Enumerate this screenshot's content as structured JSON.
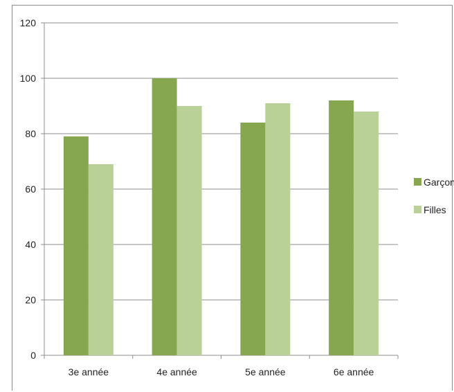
{
  "chart_data": {
    "type": "bar",
    "title": "",
    "xlabel": "",
    "ylabel": "",
    "categories": [
      "3e année",
      "4e année",
      "5e année",
      "6e année"
    ],
    "series": [
      {
        "name": "Garçon",
        "values": [
          79,
          100,
          84,
          92
        ],
        "color": "#86a64f"
      },
      {
        "name": "Filles",
        "values": [
          69,
          90,
          91,
          88
        ],
        "color": "#b9d096"
      }
    ],
    "ylim": [
      0,
      120
    ],
    "yticks": [
      0,
      20,
      40,
      60,
      80,
      100,
      120
    ],
    "grid": true,
    "legend_position": "right"
  }
}
